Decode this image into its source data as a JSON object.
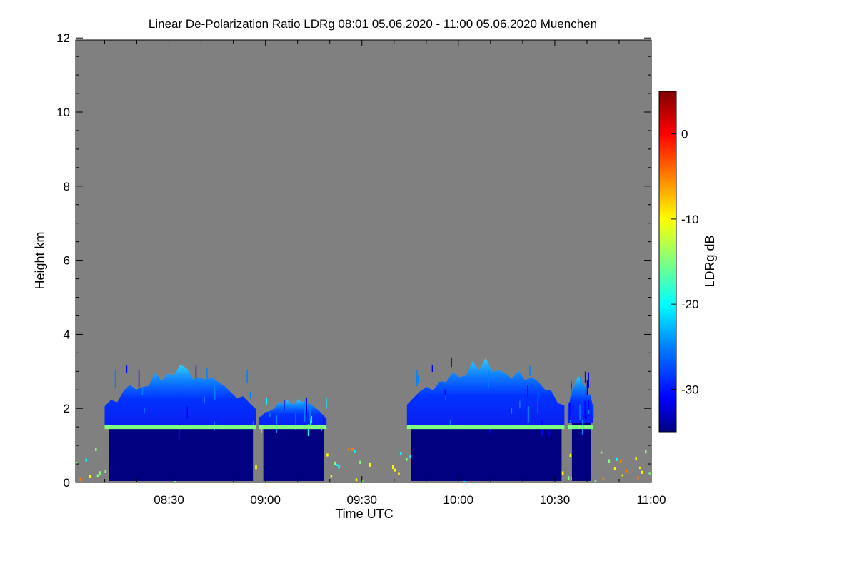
{
  "chart_data": {
    "type": "heatmap",
    "title": "Linear De-Polarization Ratio LDRg   08:01 05.06.2020 - 11:00 05.06.2020 Muenchen",
    "xlabel": "Time UTC",
    "ylabel": "Height km",
    "x_unit": "minutes since 00:00 UTC",
    "xlim": [
      481,
      660
    ],
    "ylim": [
      0,
      12.2
    ],
    "x_ticks": [
      {
        "value": 510,
        "label": "08:30"
      },
      {
        "value": 540,
        "label": "09:00"
      },
      {
        "value": 570,
        "label": "09:30"
      },
      {
        "value": 600,
        "label": "10:00"
      },
      {
        "value": 630,
        "label": "10:30"
      },
      {
        "value": 660,
        "label": "11:00"
      }
    ],
    "y_ticks": [
      {
        "value": 0,
        "label": "0"
      },
      {
        "value": 2,
        "label": "2"
      },
      {
        "value": 4,
        "label": "4"
      },
      {
        "value": 6,
        "label": "6"
      },
      {
        "value": 8,
        "label": "8"
      },
      {
        "value": 10,
        "label": "10"
      },
      {
        "value": 12,
        "label": "12"
      }
    ],
    "colorbar": {
      "label": "LDRg dB",
      "range": [
        -35,
        5
      ],
      "ticks": [
        {
          "value": 0,
          "label": "0"
        },
        {
          "value": -10,
          "label": "-10"
        },
        {
          "value": -20,
          "label": "-20"
        },
        {
          "value": -30,
          "label": "-30"
        }
      ],
      "colors": [
        "#000080",
        "#0000ff",
        "#0080ff",
        "#00ffff",
        "#80ff80",
        "#ffff00",
        "#ff8000",
        "#ff0000",
        "#800000"
      ]
    },
    "no_data_color": "#808080",
    "cloud_events": [
      {
        "t_start": 490,
        "t_end": 537,
        "cloud_top_km": 3.2,
        "cloud_base_km": 1.5,
        "ldr_db": -32
      },
      {
        "t_start": 538,
        "t_end": 559,
        "cloud_top_km": 2.3,
        "cloud_base_km": 1.5,
        "ldr_db": -30
      },
      {
        "t_start": 584,
        "t_end": 633,
        "cloud_top_km": 3.4,
        "cloud_base_km": 1.5,
        "ldr_db": -32
      },
      {
        "t_start": 634,
        "t_end": 642,
        "cloud_top_km": 3.0,
        "cloud_base_km": 1.6,
        "ldr_db": -33
      }
    ],
    "melting_layer": {
      "height_km": 1.5,
      "ldr_db": -15
    },
    "precipitation_ldr_db": -33,
    "boundary_layer_ldr_db": -12
  }
}
